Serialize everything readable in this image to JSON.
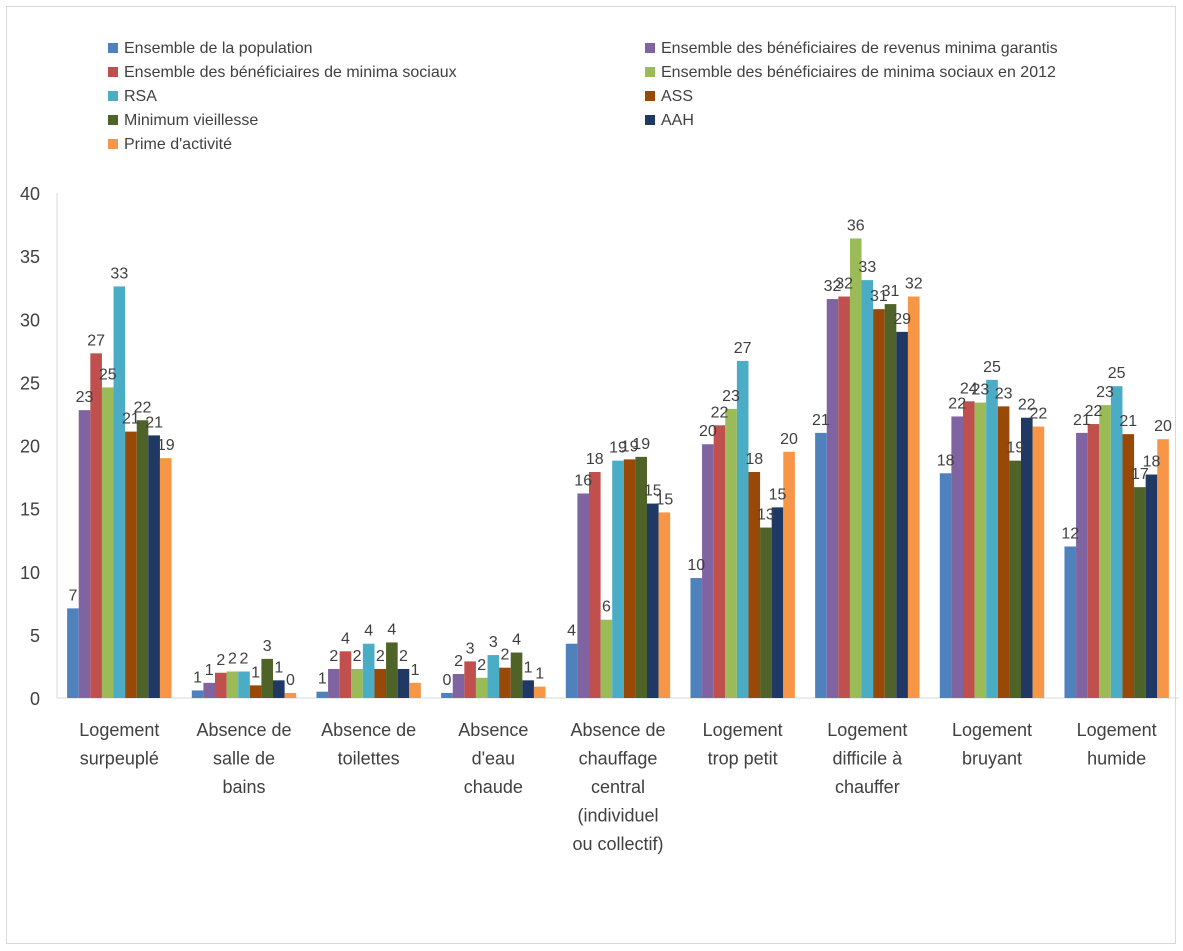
{
  "chart_data": {
    "type": "bar",
    "title": "",
    "xlabel": "",
    "ylabel": "",
    "ylim": [
      0,
      40
    ],
    "yticks": [
      0,
      5,
      10,
      15,
      20,
      25,
      30,
      35,
      40
    ],
    "grid": false,
    "legend_position": "top",
    "categories": [
      [
        "Logement",
        "surpeuplé"
      ],
      [
        "Absence de",
        "salle de",
        "bains"
      ],
      [
        "Absence de",
        "toilettes"
      ],
      [
        "Absence",
        "d'eau",
        "chaude"
      ],
      [
        "Absence de",
        "chauffage",
        "central",
        "(individuel",
        "ou collectif)"
      ],
      [
        "Logement",
        "trop petit"
      ],
      [
        "Logement",
        "difficile à",
        "chauffer"
      ],
      [
        "Logement",
        "bruyant"
      ],
      [
        "Logement",
        "humide"
      ]
    ],
    "series": [
      {
        "name": "Ensemble de la population",
        "color": "#4f81bd",
        "values": [
          7.1,
          0.6,
          0.5,
          0.4,
          4.3,
          9.5,
          21.0,
          17.8,
          12.0
        ],
        "labels": [
          "7",
          "1",
          "1",
          "0",
          "4",
          "10",
          "21",
          "18",
          "12"
        ]
      },
      {
        "name": "Ensemble des bénéficiaires de revenus minima garantis",
        "color": "#8064a2",
        "values": [
          22.8,
          1.2,
          2.3,
          1.9,
          16.2,
          20.1,
          31.6,
          22.3,
          21.0
        ],
        "labels": [
          "23",
          "1",
          "2",
          "2",
          "16",
          "20",
          "32",
          "22",
          "21"
        ]
      },
      {
        "name": "Ensemble des bénéficiaires de minima sociaux",
        "color": "#c0504d",
        "values": [
          27.3,
          2.0,
          3.7,
          2.9,
          17.9,
          21.6,
          31.8,
          23.5,
          21.7
        ],
        "labels": [
          "27",
          "2",
          "4",
          "3",
          "18",
          "22",
          "32",
          "24",
          "22"
        ]
      },
      {
        "name": "Ensemble des bénéficiaires de minima sociaux en 2012",
        "color": "#9bbb59",
        "values": [
          24.6,
          2.1,
          2.3,
          1.6,
          6.2,
          22.9,
          36.4,
          23.4,
          23.2
        ],
        "labels": [
          "25",
          "2",
          "2",
          "2",
          "6",
          "23",
          "36",
          "23",
          "23"
        ]
      },
      {
        "name": "RSA",
        "color": "#4bacc6",
        "values": [
          32.6,
          2.1,
          4.3,
          3.4,
          18.8,
          26.7,
          33.1,
          25.2,
          24.7
        ],
        "labels": [
          "33",
          "2",
          "4",
          "3",
          "19",
          "27",
          "33",
          "25",
          "25"
        ]
      },
      {
        "name": "ASS",
        "color": "#984807",
        "values": [
          21.1,
          1.0,
          2.3,
          2.4,
          18.9,
          17.9,
          30.8,
          23.1,
          20.9
        ],
        "labels": [
          "21",
          "1",
          "2",
          "2",
          "19",
          "18",
          "31",
          "23",
          "21"
        ]
      },
      {
        "name": "Minimum vieillesse",
        "color": "#4f6228",
        "values": [
          22.0,
          3.1,
          4.4,
          3.6,
          19.1,
          13.5,
          31.2,
          18.8,
          16.7
        ],
        "labels": [
          "22",
          "3",
          "4",
          "4",
          "19",
          "13",
          "31",
          "19",
          "17"
        ]
      },
      {
        "name": "AAH",
        "color": "#1f3864",
        "values": [
          20.8,
          1.4,
          2.3,
          1.4,
          15.4,
          15.1,
          29.0,
          22.2,
          17.7
        ],
        "labels": [
          "21",
          "1",
          "2",
          "1",
          "15",
          "15",
          "29",
          "22",
          "18"
        ]
      },
      {
        "name": "Prime d'activité",
        "color": "#f79646",
        "values": [
          19.0,
          0.4,
          1.2,
          0.9,
          14.7,
          19.5,
          31.8,
          21.5,
          20.5
        ],
        "labels": [
          "19",
          "0",
          "1",
          "1",
          "15",
          "20",
          "32",
          "22",
          "20"
        ]
      }
    ]
  }
}
